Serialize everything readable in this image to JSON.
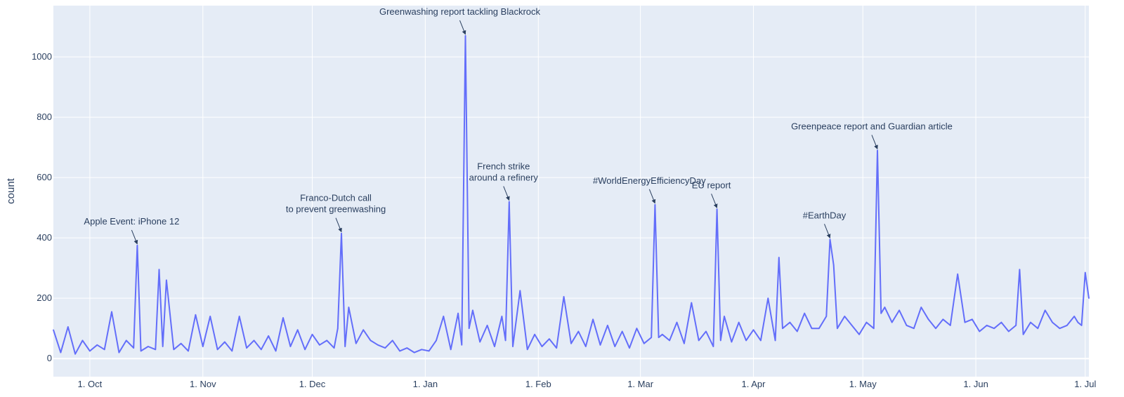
{
  "chart_data": {
    "type": "line",
    "ylabel": "count",
    "xlabel": "",
    "ylim": [
      -60,
      1170
    ],
    "x_range": [
      "2020-09-21",
      "2021-07-02"
    ],
    "grid": true,
    "colors": {
      "line": "#636efa",
      "plot_bg": "#e5ecf6",
      "grid": "#ffffff",
      "text": "#2a3f5f"
    },
    "y_ticks": [
      0,
      200,
      400,
      600,
      800,
      1000
    ],
    "x_ticks": [
      {
        "date": "2020-10-01",
        "label": "1. Oct"
      },
      {
        "date": "2020-11-01",
        "label": "1. Nov"
      },
      {
        "date": "2020-12-01",
        "label": "1. Dec"
      },
      {
        "date": "2021-01-01",
        "label": "1. Jan"
      },
      {
        "date": "2021-02-01",
        "label": "1. Feb"
      },
      {
        "date": "2021-03-01",
        "label": "1. Mar"
      },
      {
        "date": "2021-04-01",
        "label": "1. Apr"
      },
      {
        "date": "2021-05-01",
        "label": "1. May"
      },
      {
        "date": "2021-06-01",
        "label": "1. Jun"
      },
      {
        "date": "2021-07-01",
        "label": "1. Jul"
      }
    ],
    "series": [
      {
        "x": [
          "2020-09-21",
          "2020-09-23",
          "2020-09-25",
          "2020-09-27",
          "2020-09-29",
          "2020-10-01",
          "2020-10-03",
          "2020-10-05",
          "2020-10-07",
          "2020-10-09",
          "2020-10-11",
          "2020-10-13",
          "2020-10-14",
          "2020-10-15",
          "2020-10-17",
          "2020-10-19",
          "2020-10-20",
          "2020-10-21",
          "2020-10-22",
          "2020-10-24",
          "2020-10-26",
          "2020-10-28",
          "2020-10-30",
          "2020-11-01",
          "2020-11-03",
          "2020-11-05",
          "2020-11-07",
          "2020-11-09",
          "2020-11-11",
          "2020-11-13",
          "2020-11-15",
          "2020-11-17",
          "2020-11-19",
          "2020-11-21",
          "2020-11-23",
          "2020-11-25",
          "2020-11-27",
          "2020-11-29",
          "2020-12-01",
          "2020-12-03",
          "2020-12-05",
          "2020-12-07",
          "2020-12-08",
          "2020-12-09",
          "2020-12-10",
          "2020-12-11",
          "2020-12-13",
          "2020-12-15",
          "2020-12-17",
          "2020-12-19",
          "2020-12-21",
          "2020-12-23",
          "2020-12-25",
          "2020-12-27",
          "2020-12-29",
          "2020-12-31",
          "2021-01-02",
          "2021-01-04",
          "2021-01-06",
          "2021-01-08",
          "2021-01-10",
          "2021-01-11",
          "2021-01-12",
          "2021-01-13",
          "2021-01-14",
          "2021-01-16",
          "2021-01-18",
          "2021-01-20",
          "2021-01-22",
          "2021-01-23",
          "2021-01-24",
          "2021-01-25",
          "2021-01-27",
          "2021-01-29",
          "2021-01-31",
          "2021-02-02",
          "2021-02-04",
          "2021-02-06",
          "2021-02-08",
          "2021-02-10",
          "2021-02-12",
          "2021-02-14",
          "2021-02-16",
          "2021-02-18",
          "2021-02-20",
          "2021-02-22",
          "2021-02-24",
          "2021-02-26",
          "2021-02-28",
          "2021-03-02",
          "2021-03-04",
          "2021-03-05",
          "2021-03-06",
          "2021-03-07",
          "2021-03-09",
          "2021-03-11",
          "2021-03-13",
          "2021-03-15",
          "2021-03-17",
          "2021-03-19",
          "2021-03-21",
          "2021-03-22",
          "2021-03-23",
          "2021-03-24",
          "2021-03-26",
          "2021-03-28",
          "2021-03-30",
          "2021-04-01",
          "2021-04-03",
          "2021-04-05",
          "2021-04-07",
          "2021-04-08",
          "2021-04-09",
          "2021-04-11",
          "2021-04-13",
          "2021-04-15",
          "2021-04-17",
          "2021-04-19",
          "2021-04-21",
          "2021-04-22",
          "2021-04-23",
          "2021-04-24",
          "2021-04-26",
          "2021-04-28",
          "2021-04-30",
          "2021-05-02",
          "2021-05-04",
          "2021-05-05",
          "2021-05-06",
          "2021-05-07",
          "2021-05-09",
          "2021-05-11",
          "2021-05-13",
          "2021-05-15",
          "2021-05-17",
          "2021-05-19",
          "2021-05-21",
          "2021-05-23",
          "2021-05-25",
          "2021-05-27",
          "2021-05-29",
          "2021-05-31",
          "2021-06-02",
          "2021-06-04",
          "2021-06-06",
          "2021-06-08",
          "2021-06-10",
          "2021-06-12",
          "2021-06-13",
          "2021-06-14",
          "2021-06-16",
          "2021-06-18",
          "2021-06-20",
          "2021-06-22",
          "2021-06-24",
          "2021-06-26",
          "2021-06-28",
          "2021-06-29",
          "2021-06-30",
          "2021-07-01",
          "2021-07-02"
        ],
        "y": [
          95,
          20,
          105,
          15,
          60,
          25,
          45,
          30,
          155,
          20,
          60,
          35,
          375,
          25,
          40,
          30,
          295,
          40,
          260,
          30,
          50,
          25,
          145,
          40,
          140,
          30,
          55,
          25,
          140,
          35,
          60,
          30,
          75,
          25,
          135,
          40,
          95,
          30,
          80,
          45,
          60,
          35,
          100,
          415,
          40,
          170,
          50,
          95,
          60,
          45,
          35,
          60,
          25,
          35,
          20,
          30,
          25,
          60,
          140,
          30,
          150,
          45,
          1070,
          100,
          160,
          55,
          110,
          40,
          140,
          60,
          520,
          40,
          225,
          30,
          80,
          40,
          65,
          35,
          205,
          50,
          90,
          40,
          130,
          45,
          110,
          40,
          90,
          35,
          100,
          50,
          70,
          510,
          70,
          80,
          60,
          120,
          50,
          185,
          60,
          90,
          40,
          495,
          60,
          140,
          55,
          120,
          60,
          95,
          60,
          200,
          60,
          335,
          100,
          120,
          90,
          150,
          100,
          100,
          140,
          395,
          310,
          100,
          140,
          110,
          80,
          120,
          100,
          690,
          150,
          170,
          120,
          160,
          110,
          100,
          170,
          130,
          100,
          130,
          110,
          280,
          120,
          130,
          90,
          110,
          100,
          120,
          90,
          110,
          295,
          80,
          120,
          100,
          160,
          120,
          100,
          110,
          140,
          120,
          110,
          285,
          200
        ]
      }
    ],
    "annotations": [
      {
        "x": "2020-10-14",
        "y": 375,
        "text": "Apple Event: iPhone 12"
      },
      {
        "x": "2020-12-09",
        "y": 415,
        "text": "Franco-Dutch call\nto prevent greenwashing"
      },
      {
        "x": "2021-01-12",
        "y": 1070,
        "text": "Greenwashing report tackling Blackrock"
      },
      {
        "x": "2021-01-24",
        "y": 520,
        "text": "French strike\naround a refinery"
      },
      {
        "x": "2021-03-05",
        "y": 510,
        "text": "#WorldEnergyEfficiencyDay"
      },
      {
        "x": "2021-03-22",
        "y": 495,
        "text": "EU report"
      },
      {
        "x": "2021-04-22",
        "y": 395,
        "text": "#EarthDay"
      },
      {
        "x": "2021-05-05",
        "y": 690,
        "text": "Greenpeace report and Guardian article"
      }
    ]
  }
}
